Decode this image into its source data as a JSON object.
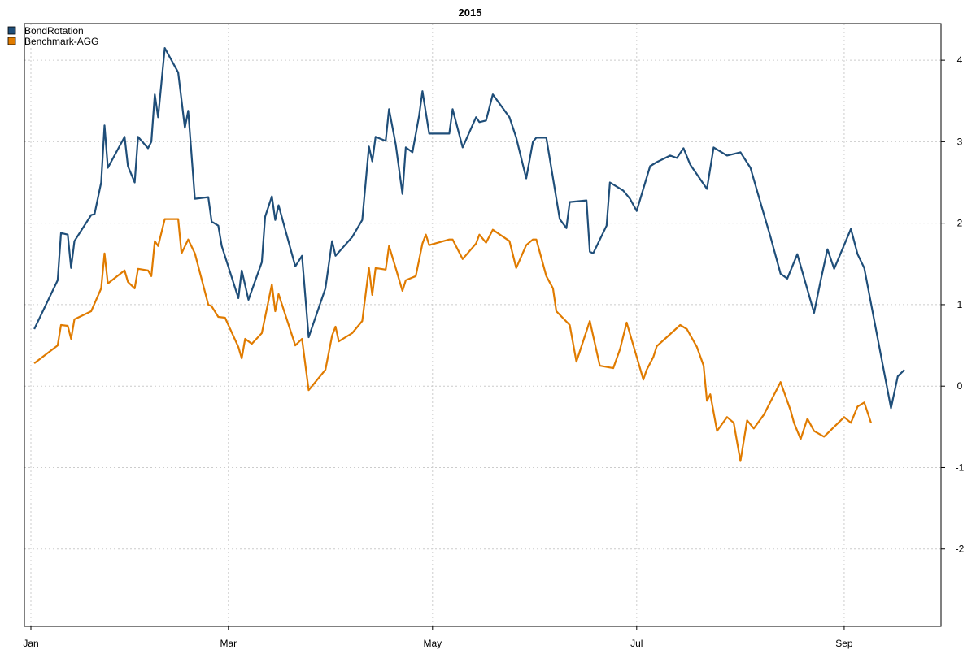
{
  "chart_data": {
    "type": "line",
    "title": "2015",
    "xlabel": "",
    "ylabel": "",
    "x_axis": {
      "type": "date",
      "range": [
        "2015-01-01",
        "2015-09-19"
      ],
      "ticks": [
        {
          "date": "2015-01-01",
          "label": "Jan"
        },
        {
          "date": "2015-03-01",
          "label": "Mar"
        },
        {
          "date": "2015-05-01",
          "label": "May"
        },
        {
          "date": "2015-07-01",
          "label": "Jul"
        },
        {
          "date": "2015-09-01",
          "label": "Sep"
        }
      ]
    },
    "y_axis": {
      "position": "right",
      "range": [
        -2.95,
        4.45
      ],
      "ticks": [
        -2,
        -1,
        0,
        1,
        2,
        3,
        4
      ]
    },
    "grid": true,
    "legend": "top-left",
    "series": [
      {
        "name": "BondRotation",
        "color": "#1F4E79",
        "points": [
          [
            "2015-01-02",
            0.7
          ],
          [
            "2015-01-09",
            1.3
          ],
          [
            "2015-01-10",
            1.88
          ],
          [
            "2015-01-12",
            1.86
          ],
          [
            "2015-01-13",
            1.45
          ],
          [
            "2015-01-14",
            1.78
          ],
          [
            "2015-01-19",
            2.1
          ],
          [
            "2015-01-20",
            2.11
          ],
          [
            "2015-01-22",
            2.5
          ],
          [
            "2015-01-23",
            3.2
          ],
          [
            "2015-01-24",
            2.68
          ],
          [
            "2015-01-29",
            3.06
          ],
          [
            "2015-01-30",
            2.7
          ],
          [
            "2015-02-01",
            2.5
          ],
          [
            "2015-02-02",
            3.06
          ],
          [
            "2015-02-05",
            2.92
          ],
          [
            "2015-02-06",
            3.0
          ],
          [
            "2015-02-07",
            3.58
          ],
          [
            "2015-02-08",
            3.3
          ],
          [
            "2015-02-10",
            4.15
          ],
          [
            "2015-02-14",
            3.85
          ],
          [
            "2015-02-16",
            3.17
          ],
          [
            "2015-02-17",
            3.38
          ],
          [
            "2015-02-19",
            2.3
          ],
          [
            "2015-02-23",
            2.32
          ],
          [
            "2015-02-24",
            2.02
          ],
          [
            "2015-02-26",
            1.97
          ],
          [
            "2015-02-27",
            1.72
          ],
          [
            "2015-03-04",
            1.08
          ],
          [
            "2015-03-05",
            1.42
          ],
          [
            "2015-03-07",
            1.06
          ],
          [
            "2015-03-11",
            1.52
          ],
          [
            "2015-03-12",
            2.08
          ],
          [
            "2015-03-14",
            2.33
          ],
          [
            "2015-03-15",
            2.04
          ],
          [
            "2015-03-16",
            2.22
          ],
          [
            "2015-03-21",
            1.47
          ],
          [
            "2015-03-23",
            1.6
          ],
          [
            "2015-03-25",
            0.6
          ],
          [
            "2015-03-30",
            1.2
          ],
          [
            "2015-04-01",
            1.78
          ],
          [
            "2015-04-02",
            1.6
          ],
          [
            "2015-04-07",
            1.83
          ],
          [
            "2015-04-10",
            2.04
          ],
          [
            "2015-04-12",
            2.94
          ],
          [
            "2015-04-13",
            2.76
          ],
          [
            "2015-04-14",
            3.06
          ],
          [
            "2015-04-17",
            3.01
          ],
          [
            "2015-04-18",
            3.4
          ],
          [
            "2015-04-20",
            2.97
          ],
          [
            "2015-04-22",
            2.36
          ],
          [
            "2015-04-23",
            2.93
          ],
          [
            "2015-04-25",
            2.87
          ],
          [
            "2015-04-27",
            3.32
          ],
          [
            "2015-04-28",
            3.62
          ],
          [
            "2015-04-30",
            3.1
          ],
          [
            "2015-05-06",
            3.1
          ],
          [
            "2015-05-07",
            3.4
          ],
          [
            "2015-05-10",
            2.93
          ],
          [
            "2015-05-14",
            3.3
          ],
          [
            "2015-05-15",
            3.24
          ],
          [
            "2015-05-17",
            3.26
          ],
          [
            "2015-05-19",
            3.58
          ],
          [
            "2015-05-24",
            3.3
          ],
          [
            "2015-05-26",
            3.05
          ],
          [
            "2015-05-29",
            2.55
          ],
          [
            "2015-05-31",
            3.0
          ],
          [
            "2015-06-01",
            3.05
          ],
          [
            "2015-06-04",
            3.05
          ],
          [
            "2015-06-08",
            2.05
          ],
          [
            "2015-06-10",
            1.94
          ],
          [
            "2015-06-11",
            2.26
          ],
          [
            "2015-06-16",
            2.28
          ],
          [
            "2015-06-17",
            1.65
          ],
          [
            "2015-06-18",
            1.63
          ],
          [
            "2015-06-22",
            1.97
          ],
          [
            "2015-06-23",
            2.5
          ],
          [
            "2015-06-27",
            2.4
          ],
          [
            "2015-06-29",
            2.3
          ],
          [
            "2015-07-01",
            2.15
          ],
          [
            "2015-07-05",
            2.7
          ],
          [
            "2015-07-07",
            2.75
          ],
          [
            "2015-07-11",
            2.83
          ],
          [
            "2015-07-13",
            2.8
          ],
          [
            "2015-07-15",
            2.92
          ],
          [
            "2015-07-17",
            2.72
          ],
          [
            "2015-07-22",
            2.42
          ],
          [
            "2015-07-24",
            2.93
          ],
          [
            "2015-07-28",
            2.83
          ],
          [
            "2015-08-01",
            2.87
          ],
          [
            "2015-08-04",
            2.68
          ],
          [
            "2015-08-07",
            2.25
          ],
          [
            "2015-08-10",
            1.83
          ],
          [
            "2015-08-13",
            1.38
          ],
          [
            "2015-08-15",
            1.32
          ],
          [
            "2015-08-18",
            1.62
          ],
          [
            "2015-08-23",
            0.9
          ],
          [
            "2015-08-25",
            1.3
          ],
          [
            "2015-08-27",
            1.68
          ],
          [
            "2015-08-29",
            1.44
          ],
          [
            "2015-09-03",
            1.93
          ],
          [
            "2015-09-05",
            1.62
          ],
          [
            "2015-09-07",
            1.45
          ],
          [
            "2015-09-15",
            -0.27
          ],
          [
            "2015-09-17",
            0.12
          ],
          [
            "2015-09-19",
            0.2
          ]
        ]
      },
      {
        "name": "Benchmark-AGG",
        "color": "#E07B00",
        "points": [
          [
            "2015-01-02",
            0.28
          ],
          [
            "2015-01-09",
            0.5
          ],
          [
            "2015-01-10",
            0.75
          ],
          [
            "2015-01-12",
            0.74
          ],
          [
            "2015-01-13",
            0.58
          ],
          [
            "2015-01-14",
            0.82
          ],
          [
            "2015-01-19",
            0.92
          ],
          [
            "2015-01-22",
            1.2
          ],
          [
            "2015-01-23",
            1.63
          ],
          [
            "2015-01-24",
            1.26
          ],
          [
            "2015-01-29",
            1.42
          ],
          [
            "2015-01-30",
            1.28
          ],
          [
            "2015-02-01",
            1.2
          ],
          [
            "2015-02-02",
            1.44
          ],
          [
            "2015-02-05",
            1.42
          ],
          [
            "2015-02-06",
            1.35
          ],
          [
            "2015-02-07",
            1.78
          ],
          [
            "2015-02-08",
            1.72
          ],
          [
            "2015-02-10",
            2.05
          ],
          [
            "2015-02-14",
            2.05
          ],
          [
            "2015-02-15",
            1.63
          ],
          [
            "2015-02-17",
            1.8
          ],
          [
            "2015-02-19",
            1.63
          ],
          [
            "2015-02-23",
            1.0
          ],
          [
            "2015-02-24",
            0.98
          ],
          [
            "2015-02-26",
            0.85
          ],
          [
            "2015-02-28",
            0.84
          ],
          [
            "2015-03-04",
            0.48
          ],
          [
            "2015-03-05",
            0.34
          ],
          [
            "2015-03-06",
            0.58
          ],
          [
            "2015-03-08",
            0.52
          ],
          [
            "2015-03-11",
            0.65
          ],
          [
            "2015-03-14",
            1.25
          ],
          [
            "2015-03-15",
            0.92
          ],
          [
            "2015-03-16",
            1.13
          ],
          [
            "2015-03-21",
            0.5
          ],
          [
            "2015-03-23",
            0.58
          ],
          [
            "2015-03-25",
            -0.05
          ],
          [
            "2015-03-30",
            0.2
          ],
          [
            "2015-04-01",
            0.62
          ],
          [
            "2015-04-02",
            0.73
          ],
          [
            "2015-04-03",
            0.55
          ],
          [
            "2015-04-07",
            0.65
          ],
          [
            "2015-04-10",
            0.8
          ],
          [
            "2015-04-12",
            1.45
          ],
          [
            "2015-04-13",
            1.12
          ],
          [
            "2015-04-14",
            1.45
          ],
          [
            "2015-04-17",
            1.43
          ],
          [
            "2015-04-18",
            1.72
          ],
          [
            "2015-04-20",
            1.45
          ],
          [
            "2015-04-22",
            1.17
          ],
          [
            "2015-04-23",
            1.3
          ],
          [
            "2015-04-26",
            1.35
          ],
          [
            "2015-04-28",
            1.75
          ],
          [
            "2015-04-29",
            1.86
          ],
          [
            "2015-04-30",
            1.73
          ],
          [
            "2015-05-06",
            1.8
          ],
          [
            "2015-05-07",
            1.8
          ],
          [
            "2015-05-10",
            1.56
          ],
          [
            "2015-05-14",
            1.75
          ],
          [
            "2015-05-15",
            1.86
          ],
          [
            "2015-05-17",
            1.76
          ],
          [
            "2015-05-19",
            1.92
          ],
          [
            "2015-05-24",
            1.78
          ],
          [
            "2015-05-26",
            1.45
          ],
          [
            "2015-05-29",
            1.73
          ],
          [
            "2015-05-31",
            1.8
          ],
          [
            "2015-06-01",
            1.8
          ],
          [
            "2015-06-04",
            1.35
          ],
          [
            "2015-06-06",
            1.2
          ],
          [
            "2015-06-07",
            0.92
          ],
          [
            "2015-06-11",
            0.75
          ],
          [
            "2015-06-13",
            0.3
          ],
          [
            "2015-06-17",
            0.8
          ],
          [
            "2015-06-20",
            0.25
          ],
          [
            "2015-06-24",
            0.22
          ],
          [
            "2015-06-26",
            0.45
          ],
          [
            "2015-06-28",
            0.78
          ],
          [
            "2015-07-03",
            0.08
          ],
          [
            "2015-07-04",
            0.2
          ],
          [
            "2015-07-06",
            0.36
          ],
          [
            "2015-07-07",
            0.49
          ],
          [
            "2015-07-10",
            0.6
          ],
          [
            "2015-07-14",
            0.75
          ],
          [
            "2015-07-16",
            0.7
          ],
          [
            "2015-07-19",
            0.48
          ],
          [
            "2015-07-21",
            0.25
          ],
          [
            "2015-07-22",
            -0.18
          ],
          [
            "2015-07-23",
            -0.1
          ],
          [
            "2015-07-25",
            -0.55
          ],
          [
            "2015-07-28",
            -0.38
          ],
          [
            "2015-07-30",
            -0.45
          ],
          [
            "2015-08-01",
            -0.92
          ],
          [
            "2015-08-03",
            -0.42
          ],
          [
            "2015-08-05",
            -0.52
          ],
          [
            "2015-08-08",
            -0.35
          ],
          [
            "2015-08-13",
            0.05
          ],
          [
            "2015-08-16",
            -0.3
          ],
          [
            "2015-08-17",
            -0.45
          ],
          [
            "2015-08-19",
            -0.65
          ],
          [
            "2015-08-21",
            -0.4
          ],
          [
            "2015-08-23",
            -0.55
          ],
          [
            "2015-08-26",
            -0.62
          ],
          [
            "2015-09-01",
            -0.38
          ],
          [
            "2015-09-03",
            -0.45
          ],
          [
            "2015-09-05",
            -0.25
          ],
          [
            "2015-09-07",
            -0.2
          ],
          [
            "2015-09-09",
            -0.45
          ]
        ]
      }
    ]
  }
}
